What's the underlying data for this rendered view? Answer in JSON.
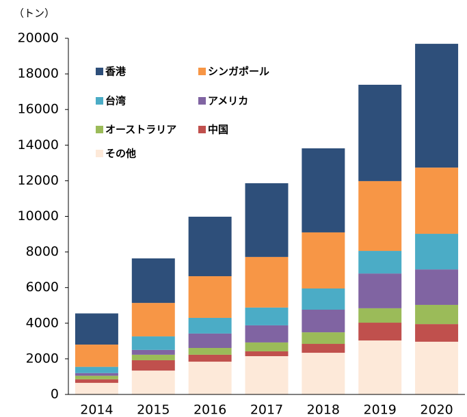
{
  "chart_data": {
    "type": "stacked_bar",
    "ylabel": "（トン）",
    "categories": [
      "2014",
      "2015",
      "2016",
      "2017",
      "2018",
      "2019",
      "2020"
    ],
    "series": [
      {
        "name": "香港",
        "color": "#2e4f7a",
        "values": [
          1750,
          2500,
          3340,
          4140,
          4720,
          5410,
          6950
        ]
      },
      {
        "name": "シンガポール",
        "color": "#f79646",
        "values": [
          1250,
          1880,
          2340,
          2840,
          3150,
          3920,
          3720
        ]
      },
      {
        "name": "台湾",
        "color": "#4bacc6",
        "values": [
          350,
          760,
          880,
          1000,
          1190,
          1270,
          2000
        ]
      },
      {
        "name": "アメリカ",
        "color": "#8064a2",
        "values": [
          150,
          270,
          810,
          960,
          1270,
          1950,
          1990
        ]
      },
      {
        "name": "オーストラリア",
        "color": "#9bbb59",
        "values": [
          200,
          310,
          380,
          500,
          650,
          810,
          1080
        ]
      },
      {
        "name": "中国",
        "color": "#c0504d",
        "values": [
          200,
          580,
          390,
          270,
          500,
          1000,
          990
        ]
      },
      {
        "name": "その他",
        "color": "#fde9d9",
        "values": [
          650,
          1340,
          1840,
          2150,
          2340,
          3030,
          2960
        ]
      }
    ],
    "ylim": [
      0,
      20000
    ],
    "yticks": [
      0,
      2000,
      4000,
      6000,
      8000,
      10000,
      12000,
      14000,
      16000,
      18000,
      20000
    ],
    "grid": false
  }
}
